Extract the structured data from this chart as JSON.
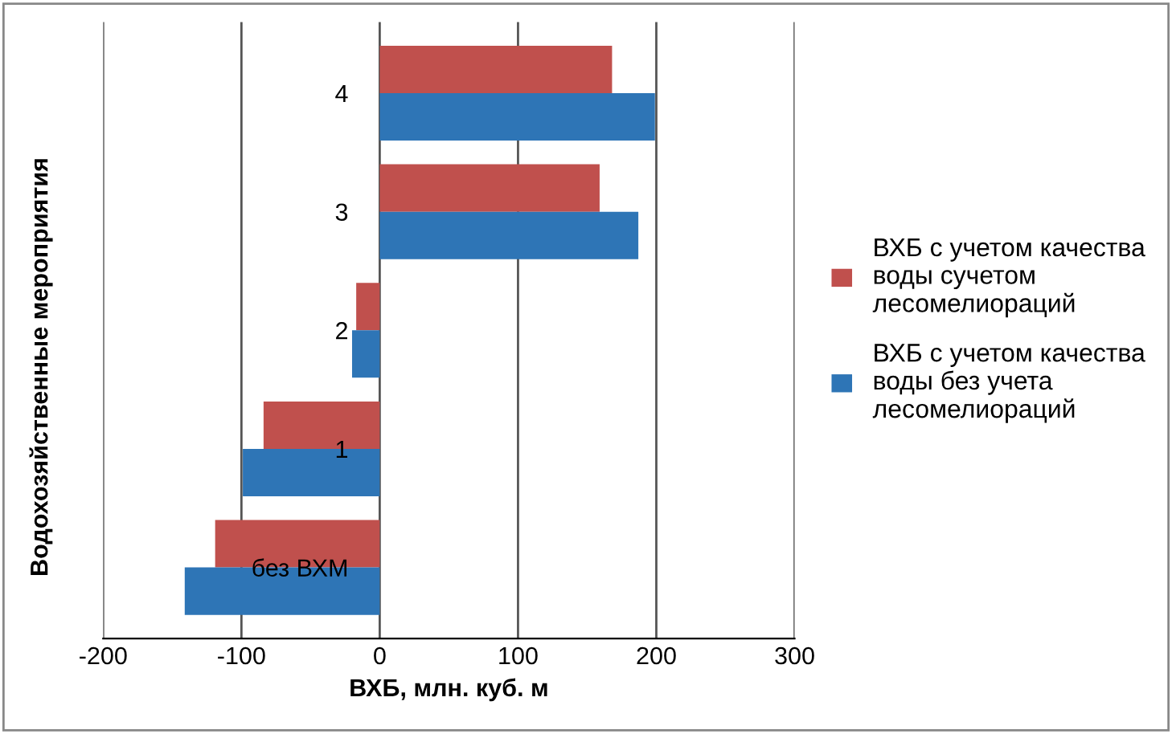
{
  "chart_data": {
    "type": "bar",
    "orientation": "horizontal",
    "xlabel": "ВХБ, млн. куб. м",
    "ylabel": "Водохозяйственные мероприятия",
    "categories": [
      "4",
      "3",
      "2",
      "1",
      "без ВХМ"
    ],
    "series": [
      {
        "name": "ВХБ с учетом качества\nводы сучетом\nлесомелиораций",
        "color": "#c0504d",
        "values": [
          168,
          159,
          -17,
          -84,
          -119
        ]
      },
      {
        "name": "ВХБ с учетом качества\nводы без учета\nлесомелиораций",
        "color": "#2e75b6",
        "values": [
          199,
          187,
          -20,
          -99,
          -141
        ]
      }
    ],
    "xlim": [
      -200,
      300
    ],
    "xticks": [
      -200,
      -100,
      0,
      100,
      200,
      300
    ],
    "grid": "x",
    "legend": "right"
  }
}
